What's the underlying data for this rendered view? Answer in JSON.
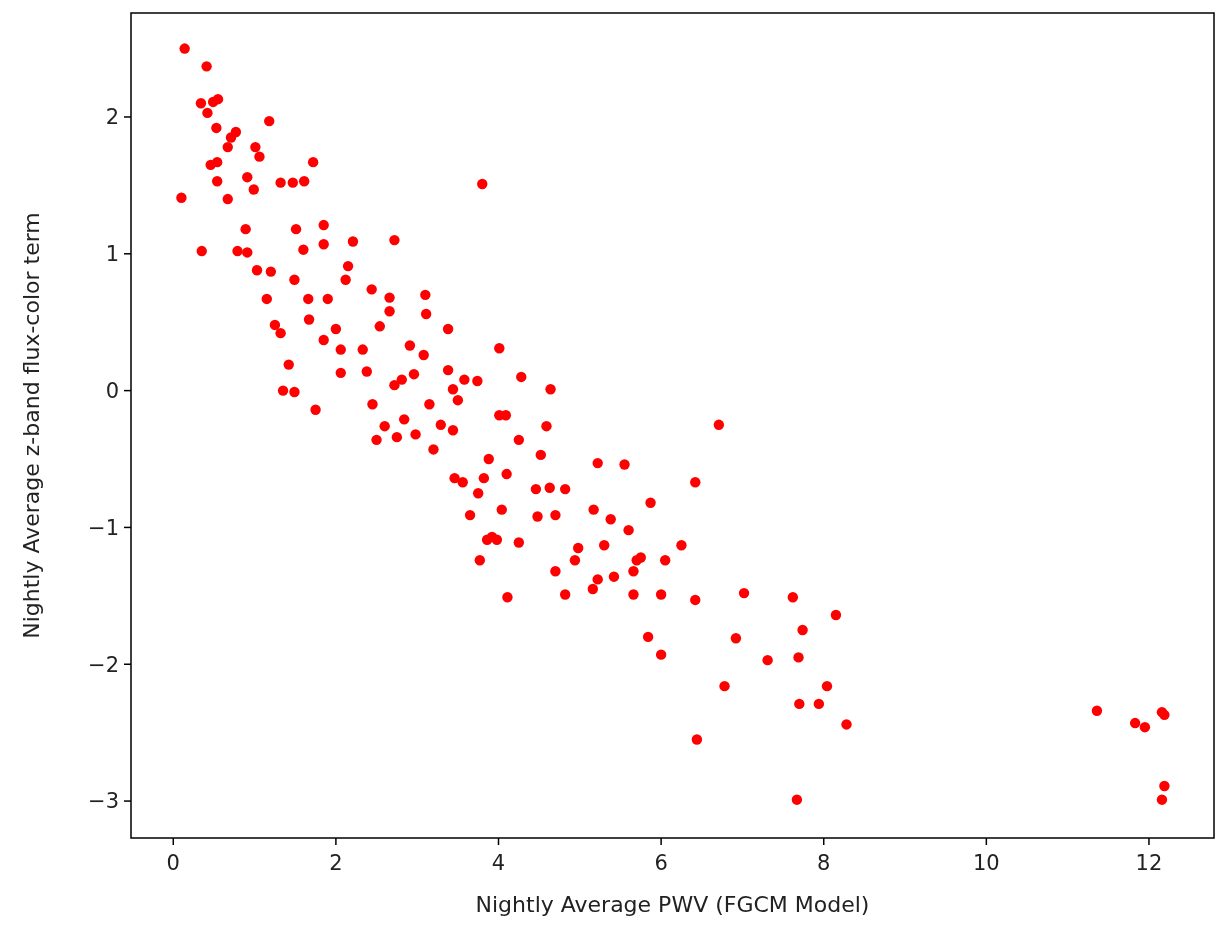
{
  "chart_data": {
    "type": "scatter",
    "xlabel": "Nightly Average PWV (FGCM Model)",
    "ylabel": "Nightly Average z-band flux-color term",
    "xlim": [
      -0.52,
      12.8
    ],
    "ylim": [
      -3.27,
      2.76
    ],
    "xticks": [
      0,
      2,
      4,
      6,
      8,
      10,
      12
    ],
    "yticks": [
      -3,
      -2,
      -1,
      0,
      1,
      2
    ],
    "grid": false,
    "marker": "circle",
    "series": [
      {
        "color": "#ff0000",
        "x": [
          0.14,
          0.1,
          0.41,
          0.35,
          0.34,
          0.42,
          0.49,
          0.55,
          0.46,
          0.54,
          0.54,
          0.53,
          0.67,
          0.71,
          0.77,
          1.18,
          0.67,
          0.79,
          0.91,
          1.01,
          1.06,
          0.99,
          0.91,
          0.89,
          1.03,
          1.15,
          1.2,
          1.25,
          1.32,
          1.35,
          1.42,
          1.49,
          1.75,
          1.72,
          1.61,
          1.47,
          1.32,
          1.51,
          1.6,
          1.49,
          1.66,
          1.67,
          1.85,
          1.85,
          1.9,
          1.85,
          2.0,
          2.06,
          2.06,
          2.21,
          2.15,
          2.12,
          2.33,
          2.38,
          2.44,
          2.45,
          2.5,
          2.6,
          2.54,
          2.66,
          2.72,
          2.81,
          2.72,
          2.66,
          2.75,
          2.84,
          2.91,
          2.96,
          2.98,
          3.1,
          3.11,
          3.08,
          3.15,
          3.2,
          3.29,
          3.38,
          3.38,
          3.44,
          3.44,
          3.5,
          3.46,
          3.56,
          3.58,
          3.74,
          3.65,
          3.75,
          3.77,
          3.82,
          3.88,
          3.8,
          3.86,
          3.92,
          3.98,
          4.01,
          4.01,
          4.09,
          4.04,
          4.1,
          4.11,
          4.25,
          4.25,
          4.28,
          4.46,
          4.48,
          4.52,
          4.59,
          4.64,
          4.63,
          4.7,
          4.7,
          4.82,
          4.82,
          4.94,
          4.98,
          5.16,
          5.17,
          5.22,
          5.22,
          5.3,
          5.38,
          5.42,
          5.55,
          5.6,
          5.66,
          5.66,
          5.7,
          5.75,
          5.84,
          5.87,
          6.0,
          6.0,
          6.05,
          6.25,
          6.42,
          6.42,
          6.44,
          6.71,
          6.78,
          6.92,
          7.02,
          7.31,
          7.62,
          7.67,
          7.69,
          7.7,
          7.74,
          7.94,
          8.04,
          8.15,
          8.28,
          11.36,
          11.83,
          11.95,
          12.16,
          12.19,
          12.19,
          12.16
        ],
        "values": [
          2.5,
          1.41,
          2.37,
          1.02,
          2.1,
          2.03,
          2.11,
          2.13,
          1.65,
          1.67,
          1.53,
          1.92,
          1.78,
          1.85,
          1.89,
          1.97,
          1.4,
          1.02,
          1.01,
          1.78,
          1.71,
          1.47,
          1.56,
          1.18,
          0.88,
          0.67,
          0.87,
          0.48,
          0.42,
          0,
          0.19,
          -0.01,
          -0.14,
          1.67,
          1.53,
          1.52,
          1.52,
          1.18,
          1.03,
          0.81,
          0.67,
          0.52,
          1.21,
          1.07,
          0.67,
          0.37,
          0.45,
          0.3,
          0.13,
          1.09,
          0.91,
          0.81,
          0.3,
          0.14,
          0.74,
          -0.1,
          -0.36,
          -0.26,
          0.47,
          0.58,
          0.04,
          0.08,
          1.1,
          0.68,
          -0.34,
          -0.21,
          0.33,
          0.12,
          -0.32,
          0.7,
          0.56,
          0.26,
          -0.1,
          -0.43,
          -0.25,
          0.45,
          0.15,
          0.01,
          -0.29,
          -0.07,
          -0.64,
          -0.67,
          0.08,
          0.07,
          -0.91,
          -0.75,
          -1.24,
          -0.64,
          -0.5,
          1.51,
          -1.09,
          -1.07,
          -1.09,
          0.31,
          -0.18,
          -0.18,
          -0.87,
          -0.61,
          -1.51,
          -0.36,
          -1.11,
          0.1,
          -0.72,
          -0.92,
          -0.47,
          -0.26,
          0.01,
          -0.71,
          -0.91,
          -1.32,
          -0.72,
          -1.49,
          -1.24,
          -1.15,
          -1.45,
          -0.87,
          -1.38,
          -0.53,
          -1.13,
          -0.94,
          -1.36,
          -0.54,
          -1.02,
          -1.49,
          -1.32,
          -1.24,
          -1.22,
          -1.8,
          -0.82,
          -1.49,
          -1.93,
          -1.24,
          -1.13,
          -0.67,
          -1.53,
          -2.55,
          -0.25,
          -2.16,
          -1.81,
          -1.48,
          -1.97,
          -1.51,
          -2.99,
          -1.95,
          -2.29,
          -1.75,
          -2.29,
          -2.16,
          -1.64,
          -2.44,
          -2.34,
          -2.43,
          -2.46,
          -2.35,
          -2.37,
          -2.89,
          -2.99
        ]
      }
    ]
  }
}
